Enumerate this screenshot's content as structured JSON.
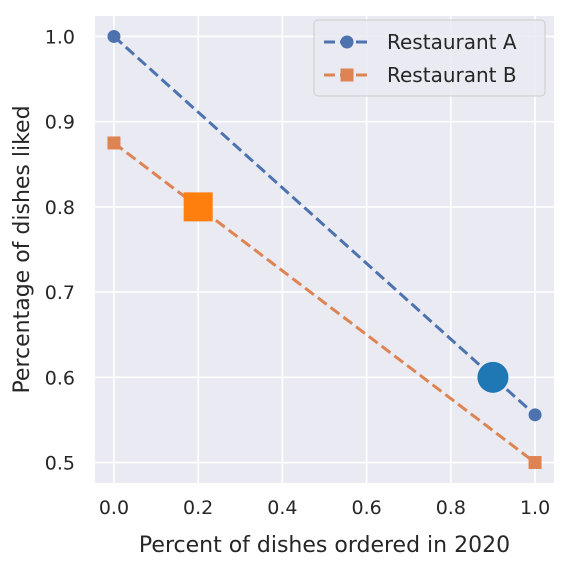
{
  "chart_data": {
    "type": "line",
    "title": "",
    "xlabel": "Percent of dishes ordered in 2020",
    "ylabel": "Percentage of dishes liked",
    "xlim": [
      -0.045,
      1.045
    ],
    "ylim": [
      0.476,
      1.024
    ],
    "xticks": [
      0.0,
      0.2,
      0.4,
      0.6,
      0.8,
      1.0
    ],
    "xtick_labels": [
      "0.0",
      "0.2",
      "0.4",
      "0.6",
      "0.8",
      "1.0"
    ],
    "yticks": [
      0.5,
      0.6,
      0.7,
      0.8,
      0.9,
      1.0
    ],
    "ytick_labels": [
      "0.5",
      "0.6",
      "0.7",
      "0.8",
      "0.9",
      "1.0"
    ],
    "grid": true,
    "legend_position": "top-right",
    "series": [
      {
        "name": "Restaurant A",
        "marker": "circle",
        "color": "#4c72b0",
        "line_style": "dashed",
        "x": [
          0.0,
          1.0
        ],
        "y": [
          1.0,
          0.556
        ]
      },
      {
        "name": "Restaurant B",
        "marker": "square",
        "color": "#dd8452",
        "line_style": "dashed",
        "x": [
          0.0,
          1.0
        ],
        "y": [
          0.875,
          0.5
        ]
      }
    ],
    "highlight_points": [
      {
        "marker": "circle",
        "color": "#1f77b4",
        "x": 0.9,
        "y": 0.6
      },
      {
        "marker": "square",
        "color": "#ff7f0e",
        "x": 0.2,
        "y": 0.8
      }
    ]
  }
}
